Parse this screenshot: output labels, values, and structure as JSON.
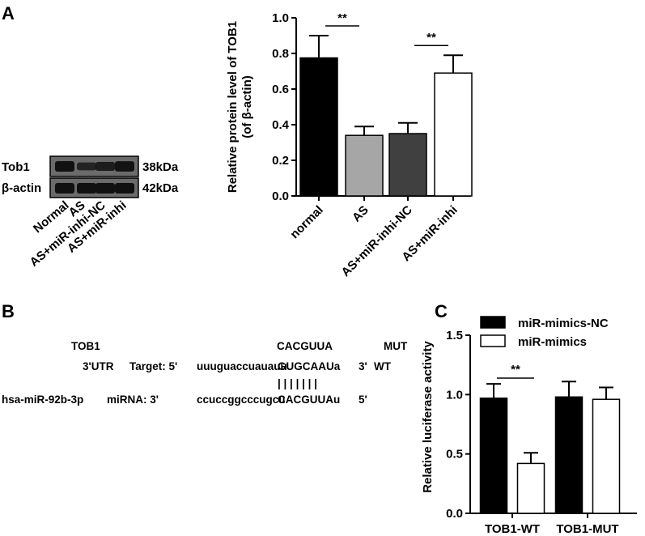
{
  "panels": {
    "A": {
      "letter": "A",
      "western_blot": {
        "bands": [
          {
            "name": "Tob1",
            "size": "38kDa",
            "intensities": [
              1.0,
              0.55,
              0.7,
              0.95
            ]
          },
          {
            "name": "β-actin",
            "size": "42kDa",
            "intensities": [
              1.0,
              1.0,
              1.0,
              1.0
            ]
          }
        ],
        "lanes": [
          "Normal",
          "AS",
          "AS+miR-inhi-NC",
          "AS+miR-inhi"
        ],
        "colors": {
          "band": "#111111",
          "background": "#666666"
        }
      }
    },
    "B": {
      "letter": "B",
      "gene": "TOB1",
      "utr": "3'UTR",
      "target_label": "Target: 5'",
      "target_seq_prefix": "uuuguaccuauauu",
      "target_seq_match": "GUGCAAUa",
      "target_end": "3'",
      "wt_label": "WT",
      "mut_label": "MUT",
      "mut_seq": "CACGUUA",
      "pairing": "| | | | | | |",
      "mirna_name": "hsa-miR-92b-3p",
      "mirna_label": "miRNA: 3'",
      "mirna_seq_prefix": "ccuccggcccugcu",
      "mirna_seq_match": "CACGUUAu",
      "mirna_end": "5'"
    },
    "C": {
      "letter": "C"
    }
  },
  "chart_data": [
    {
      "id": "A",
      "type": "bar",
      "categories": [
        "normal",
        "AS",
        "AS+miR-inhi-NC",
        "AS+miR-inhi"
      ],
      "values": [
        0.775,
        0.34,
        0.35,
        0.69
      ],
      "errors": [
        0.125,
        0.05,
        0.06,
        0.1
      ],
      "colors": [
        "#000000",
        "#a6a6a6",
        "#404040",
        "#ffffff"
      ],
      "ylabel": "Relative protein level of TOB1",
      "ylabel2": "(of β-actin)",
      "ylim": [
        0,
        1.0
      ],
      "yticks": [
        "0.0",
        "0.2",
        "0.4",
        "0.6",
        "0.8",
        "1.0"
      ],
      "significance": [
        {
          "from": 0,
          "to": 1,
          "label": "**"
        },
        {
          "from": 2,
          "to": 3,
          "label": "**"
        }
      ]
    },
    {
      "id": "C",
      "type": "bar",
      "categories": [
        "TOB1-WT",
        "TOB1-MUT"
      ],
      "series": [
        {
          "name": "miR-mimics-NC",
          "values": [
            0.97,
            0.98
          ],
          "errors": [
            0.12,
            0.13
          ],
          "color": "#000000"
        },
        {
          "name": "miR-mimics",
          "values": [
            0.42,
            0.96
          ],
          "errors": [
            0.09,
            0.1
          ],
          "color": "#ffffff"
        }
      ],
      "ylabel": "Relative luciferase activity",
      "ylim": [
        0,
        1.5
      ],
      "yticks": [
        "0.0",
        "0.5",
        "1.0",
        "1.5"
      ],
      "legend": "top",
      "significance": [
        {
          "group": 0,
          "label": "**"
        }
      ]
    }
  ]
}
